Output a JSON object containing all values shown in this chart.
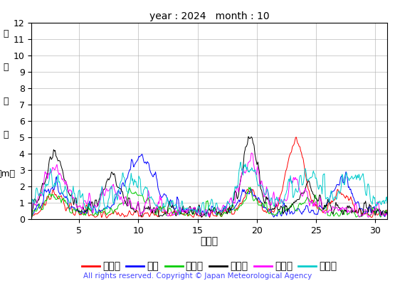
{
  "title": "year : 2024   month : 10",
  "ylabel_kanji": [
    "有",
    "義",
    "波",
    "高",
    "（m）"
  ],
  "xlabel": "（日）",
  "copyright": "All rights reserved. Copyright © Japan Meteorological Agency",
  "ylim": [
    0,
    12
  ],
  "yticks": [
    0,
    1,
    2,
    3,
    4,
    5,
    6,
    7,
    8,
    9,
    10,
    11,
    12
  ],
  "xticks": [
    5,
    10,
    15,
    20,
    25,
    30
  ],
  "xticklabels": [
    "5",
    "10",
    "15",
    "20",
    "25",
    "30"
  ],
  "xlim": [
    1,
    31
  ],
  "stations": [
    {
      "name": "上ノ国",
      "color": "#FF0000"
    },
    {
      "name": "唐桑",
      "color": "#0000FF"
    },
    {
      "name": "石廈崎",
      "color": "#00CC00"
    },
    {
      "name": "経ヶ岸",
      "color": "#000000"
    },
    {
      "name": "生月島",
      "color": "#FF00FF"
    },
    {
      "name": "屋久島",
      "color": "#00CCCC"
    }
  ],
  "background_color": "#FFFFFF",
  "grid_color": "#AAAAAA",
  "title_fontsize": 11,
  "tick_fontsize": 9,
  "legend_fontsize": 9,
  "copyright_fontsize": 7.5,
  "copyright_color": "#4444FF",
  "lw": 0.7
}
